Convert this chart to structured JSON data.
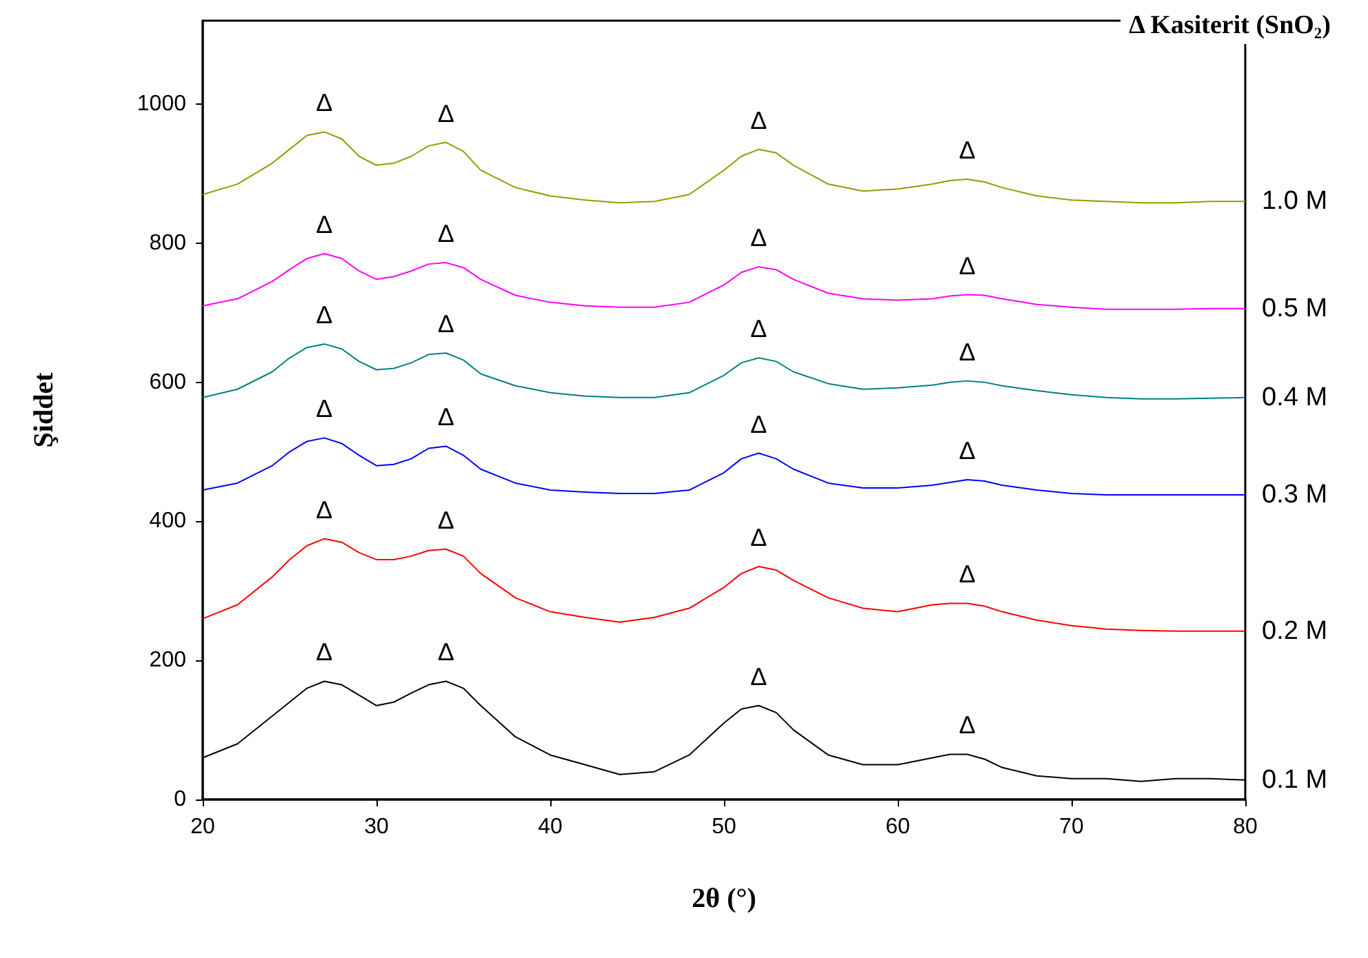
{
  "chart_data": {
    "type": "line",
    "xlabel": "2θ (°)",
    "ylabel": "Şiddet",
    "x": [
      20,
      22,
      24,
      25,
      26,
      27,
      28,
      29,
      30,
      31,
      32,
      33,
      34,
      35,
      36,
      38,
      40,
      42,
      44,
      46,
      48,
      50,
      51,
      52,
      53,
      54,
      56,
      58,
      60,
      62,
      63,
      64,
      65,
      66,
      68,
      70,
      72,
      74,
      76,
      78,
      80
    ],
    "series": [
      {
        "name": "0.1 M",
        "color": "#000000",
        "values": [
          60,
          80,
          120,
          140,
          160,
          170,
          165,
          150,
          135,
          140,
          153,
          165,
          170,
          160,
          135,
          90,
          64,
          50,
          36,
          40,
          64,
          110,
          130,
          135,
          125,
          100,
          64,
          50,
          50,
          60,
          65,
          65,
          58,
          46,
          34,
          30,
          30,
          26,
          30,
          30,
          28
        ]
      },
      {
        "name": "0.2 M",
        "color": "#ff0000",
        "values": [
          260,
          280,
          320,
          345,
          365,
          375,
          370,
          355,
          345,
          345,
          350,
          358,
          360,
          350,
          325,
          290,
          270,
          262,
          255,
          262,
          275,
          305,
          325,
          335,
          330,
          315,
          290,
          275,
          270,
          280,
          282,
          282,
          278,
          270,
          258,
          250,
          245,
          243,
          242,
          242,
          242
        ]
      },
      {
        "name": "0.3 M",
        "color": "#0000ff",
        "values": [
          445,
          455,
          480,
          500,
          515,
          520,
          512,
          495,
          480,
          482,
          490,
          505,
          508,
          495,
          475,
          455,
          445,
          442,
          440,
          440,
          445,
          470,
          490,
          498,
          490,
          475,
          455,
          448,
          448,
          452,
          456,
          460,
          458,
          452,
          445,
          440,
          438,
          438,
          438,
          438,
          438
        ]
      },
      {
        "name": "0.4 M",
        "color": "#008080",
        "values": [
          578,
          590,
          615,
          635,
          650,
          655,
          648,
          630,
          618,
          620,
          628,
          640,
          642,
          632,
          612,
          595,
          585,
          580,
          578,
          578,
          585,
          610,
          628,
          635,
          630,
          615,
          598,
          590,
          592,
          596,
          600,
          602,
          600,
          595,
          588,
          582,
          578,
          576,
          576,
          577,
          578
        ]
      },
      {
        "name": "0.5 M",
        "color": "#ff00ff",
        "values": [
          710,
          720,
          745,
          762,
          778,
          785,
          778,
          760,
          748,
          752,
          760,
          770,
          772,
          765,
          748,
          725,
          715,
          710,
          708,
          708,
          715,
          740,
          758,
          766,
          762,
          748,
          728,
          720,
          718,
          720,
          724,
          726,
          725,
          720,
          712,
          708,
          705,
          705,
          705,
          706,
          706
        ]
      },
      {
        "name": "1.0 M",
        "color": "#999900",
        "values": [
          870,
          885,
          915,
          935,
          955,
          960,
          950,
          925,
          912,
          915,
          925,
          940,
          945,
          932,
          905,
          880,
          868,
          862,
          858,
          860,
          870,
          905,
          925,
          935,
          930,
          912,
          885,
          875,
          878,
          885,
          890,
          892,
          888,
          880,
          868,
          862,
          860,
          858,
          858,
          860,
          860
        ]
      }
    ],
    "xlim": [
      20,
      80
    ],
    "xticks": [
      20,
      30,
      40,
      50,
      60,
      70,
      80
    ],
    "ylim": [
      0,
      1120
    ],
    "yticks": [
      0,
      200,
      400,
      600,
      800,
      1000
    ],
    "annotations": [
      "Δ Kasiterit (SnO₂)",
      {
        "text": "Δ",
        "x": 27,
        "y": 170
      },
      {
        "text": "Δ",
        "x": 34,
        "y": 170
      },
      {
        "text": "Δ",
        "x": 52,
        "y": 135
      },
      {
        "text": "Δ",
        "x": 64,
        "y": 65
      },
      {
        "text": "Δ",
        "x": 27,
        "y": 375
      },
      {
        "text": "Δ",
        "x": 34,
        "y": 360
      },
      {
        "text": "Δ",
        "x": 52,
        "y": 335
      },
      {
        "text": "Δ",
        "x": 64,
        "y": 282
      },
      {
        "text": "Δ",
        "x": 27,
        "y": 520
      },
      {
        "text": "Δ",
        "x": 34,
        "y": 508
      },
      {
        "text": "Δ",
        "x": 52,
        "y": 498
      },
      {
        "text": "Δ",
        "x": 64,
        "y": 460
      },
      {
        "text": "Δ",
        "x": 27,
        "y": 655
      },
      {
        "text": "Δ",
        "x": 34,
        "y": 642
      },
      {
        "text": "Δ",
        "x": 52,
        "y": 635
      },
      {
        "text": "Δ",
        "x": 64,
        "y": 602
      },
      {
        "text": "Δ",
        "x": 27,
        "y": 785
      },
      {
        "text": "Δ",
        "x": 34,
        "y": 772
      },
      {
        "text": "Δ",
        "x": 52,
        "y": 766
      },
      {
        "text": "Δ",
        "x": 64,
        "y": 726
      },
      {
        "text": "Δ",
        "x": 27,
        "y": 960
      },
      {
        "text": "Δ",
        "x": 34,
        "y": 945
      },
      {
        "text": "Δ",
        "x": 52,
        "y": 935
      },
      {
        "text": "Δ",
        "x": 64,
        "y": 892
      }
    ],
    "legend": false,
    "grid": false
  }
}
